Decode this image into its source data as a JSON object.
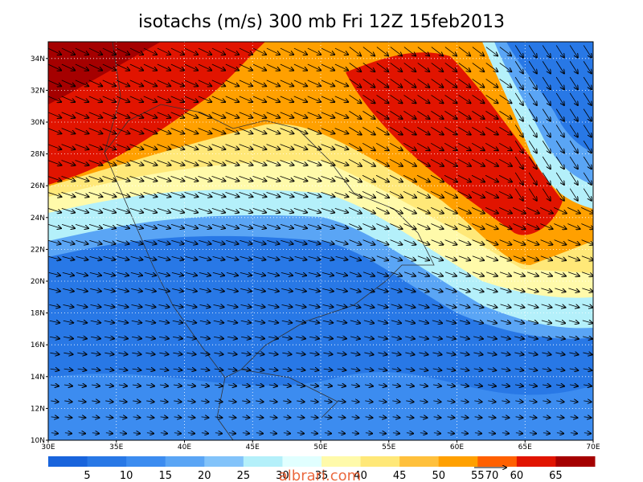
{
  "header": {
    "title": "isotachs (m/s) 300 mb Fri 12Z 15feb2013"
  },
  "map": {
    "lat_labels": [
      "10N",
      "12N",
      "14N",
      "16N",
      "18N",
      "20N",
      "22N",
      "24N",
      "26N",
      "28N",
      "30N",
      "32N",
      "34N"
    ],
    "lon_labels": [
      "30E",
      "35E",
      "40E",
      "45E",
      "50E",
      "55E",
      "60E",
      "65E",
      "70E"
    ]
  },
  "colorbar": {
    "labels": [
      5,
      10,
      15,
      20,
      25,
      30,
      35,
      40,
      45,
      50,
      55,
      60,
      65
    ],
    "colors": [
      "#1964dc",
      "#2878e6",
      "#3c8cf0",
      "#5aa5f5",
      "#82c3fa",
      "#b4f0fa",
      "#e1ffff",
      "#fffaaa",
      "#ffe878",
      "#ffc03c",
      "#ffa000",
      "#ff6000",
      "#e11400",
      "#a50000"
    ]
  },
  "vector_reference": {
    "label": "70"
  },
  "watermark": "albrari.com"
}
